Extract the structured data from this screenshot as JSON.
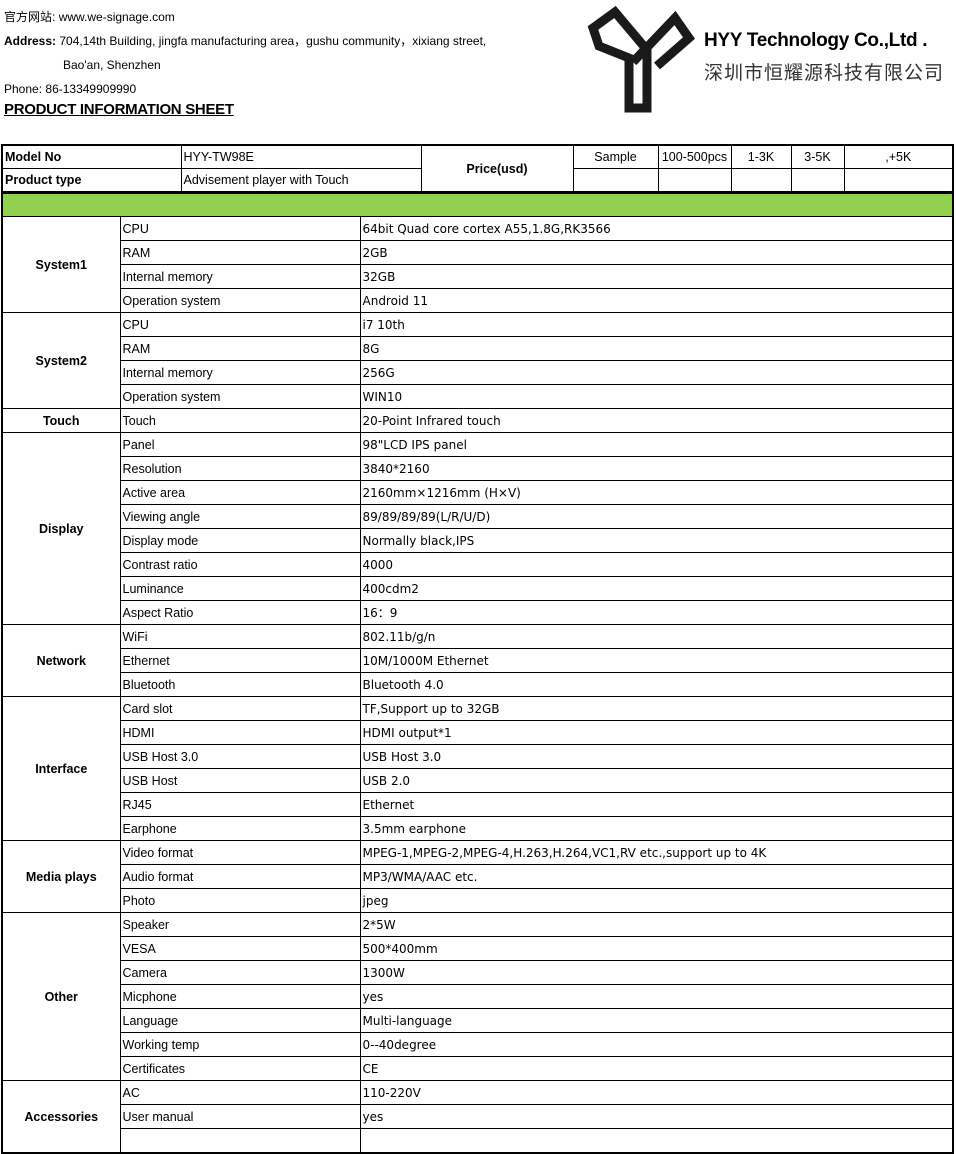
{
  "header": {
    "website_label": "官方网站:",
    "website": "www.we-signage.com",
    "address_label": "Address:",
    "address_line1": "704,14th Building, jingfa manufacturing area，gushu community，xixiang street,",
    "address_line2": "Bao'an, Shenzhen",
    "phone_label": "Phone:",
    "phone": "86-13349909990",
    "title": "PRODUCT INFORMATION SHEET"
  },
  "company": {
    "name": "HYY Technology Co.,Ltd .",
    "name_cn": "深圳市恒耀源科技有限公司"
  },
  "info": {
    "model_label": "Model No",
    "model": "HYY-TW98E",
    "type_label": "Product type",
    "type": "Advisement player with Touch",
    "price_label": "Price(usd)",
    "price_tiers": [
      "Sample",
      "100-500pcs",
      "1-3K",
      "3-5K",
      ",+5K"
    ]
  },
  "colors": {
    "band": "#92d050"
  },
  "sections": [
    {
      "name": "System1",
      "rows": [
        [
          "CPU",
          "64bit Quad core cortex A55,1.8G,RK3566"
        ],
        [
          "RAM",
          "2GB"
        ],
        [
          "Internal memory",
          "32GB"
        ],
        [
          "Operation system",
          "Android 11"
        ]
      ]
    },
    {
      "name": "System2",
      "rows": [
        [
          "CPU",
          "i7 10th"
        ],
        [
          "RAM",
          "8G"
        ],
        [
          "Internal memory",
          "256G"
        ],
        [
          "Operation system",
          "WIN10"
        ]
      ]
    },
    {
      "name": "Touch",
      "rows": [
        [
          "Touch",
          "20-Point Infrared touch"
        ]
      ]
    },
    {
      "name": "Display",
      "rows": [
        [
          "Panel",
          "98\"LCD IPS panel"
        ],
        [
          "Resolution",
          "3840*2160"
        ],
        [
          "Active area",
          "2160mm×1216mm (H×V)"
        ],
        [
          "Viewing angle",
          "89/89/89/89(L/R/U/D)"
        ],
        [
          "Display mode",
          "Normally black,IPS"
        ],
        [
          "Contrast ratio",
          "4000"
        ],
        [
          "Luminance",
          "400cdm2"
        ],
        [
          "Aspect Ratio",
          "16：9"
        ]
      ]
    },
    {
      "name": "Network",
      "rows": [
        [
          "WiFi",
          "802.11b/g/n"
        ],
        [
          "Ethernet",
          "10M/1000M Ethernet"
        ],
        [
          "Bluetooth",
          "Bluetooth 4.0"
        ]
      ]
    },
    {
      "name": "Interface",
      "rows": [
        [
          "Card slot",
          "TF,Support up to 32GB"
        ],
        [
          "HDMI",
          "HDMI output*1"
        ],
        [
          "USB Host 3.0",
          "USB Host 3.0"
        ],
        [
          "USB Host",
          "USB 2.0"
        ],
        [
          "RJ45",
          "Ethernet"
        ],
        [
          "Earphone",
          "3.5mm earphone"
        ]
      ]
    },
    {
      "name": "Media plays",
      "rows": [
        [
          "Video format",
          "MPEG-1,MPEG-2,MPEG-4,H.263,H.264,VC1,RV etc.,support up to 4K"
        ],
        [
          "Audio format",
          "MP3/WMA/AAC etc."
        ],
        [
          "Photo",
          "jpeg"
        ]
      ]
    },
    {
      "name": "Other",
      "rows": [
        [
          "Speaker",
          "2*5W"
        ],
        [
          "VESA",
          "500*400mm"
        ],
        [
          "Camera",
          "1300W"
        ],
        [
          "Micphone",
          "yes"
        ],
        [
          "Language",
          "Multi-language"
        ],
        [
          "Working temp",
          "0--40degree"
        ],
        [
          "Certificates",
          "CE"
        ]
      ]
    },
    {
      "name": "Accessories",
      "rows": [
        [
          "AC",
          "110-220V"
        ],
        [
          "User manual",
          "yes"
        ],
        [
          "",
          ""
        ]
      ]
    }
  ]
}
